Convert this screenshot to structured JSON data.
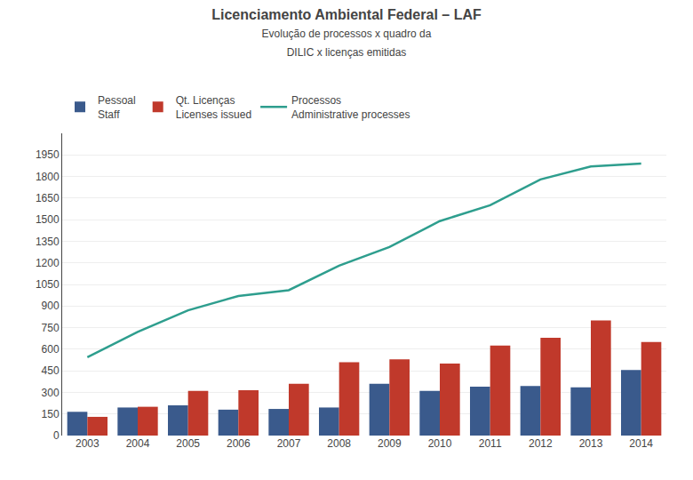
{
  "chart_data": {
    "type": "bar",
    "title": "Licenciamento Ambiental Federal – LAF",
    "subtitle": "Evolução de processos x quadro da\nDILIC x licenças emitidas",
    "categories": [
      "2003",
      "2004",
      "2005",
      "2006",
      "2007",
      "2008",
      "2009",
      "2010",
      "2011",
      "2012",
      "2013",
      "2014"
    ],
    "series": [
      {
        "name": "Pessoal\nStaff",
        "type": "bar",
        "color": "#3A5A8C",
        "values": [
          165,
          195,
          210,
          180,
          185,
          195,
          360,
          310,
          340,
          345,
          335,
          455
        ]
      },
      {
        "name": "Qt. Licenças\nLicenses issued",
        "type": "bar",
        "color": "#C0392B",
        "values": [
          130,
          200,
          310,
          315,
          360,
          510,
          530,
          500,
          625,
          680,
          800,
          650
        ]
      },
      {
        "name": "Processos\nAdministrative processes",
        "type": "line",
        "color": "#2E9E8E",
        "values": [
          545,
          720,
          870,
          970,
          1010,
          1180,
          1310,
          1490,
          1600,
          1780,
          1870,
          1890
        ]
      }
    ],
    "ylim": [
      0,
      2100
    ],
    "yticks": [
      0,
      150,
      300,
      450,
      600,
      750,
      900,
      1050,
      1200,
      1350,
      1500,
      1650,
      1800,
      1950
    ],
    "grid": true,
    "legend": "top"
  }
}
